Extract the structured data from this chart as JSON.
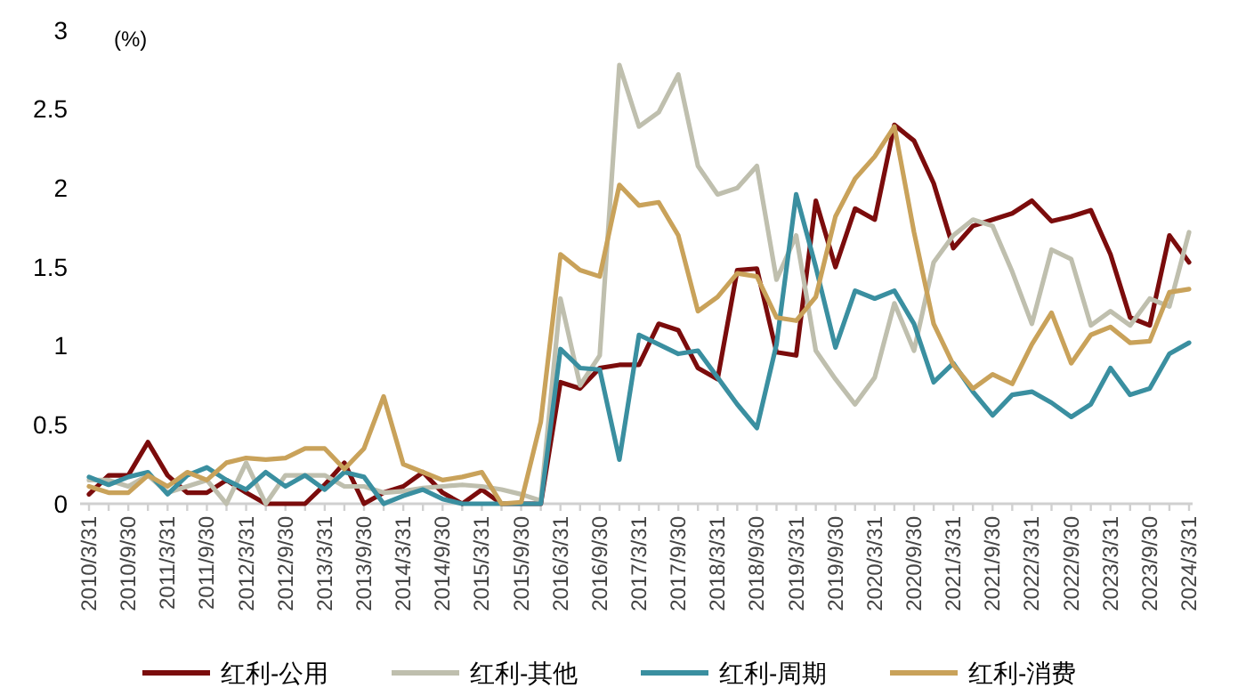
{
  "chart_data": {
    "type": "line",
    "ylabel": "(%)",
    "categories": [
      "2010/3/31",
      null,
      "2010/9/30",
      null,
      "2011/3/31",
      null,
      "2011/9/30",
      null,
      "2012/3/31",
      null,
      "2012/9/30",
      null,
      "2013/3/31",
      null,
      "2013/9/30",
      null,
      "2014/3/31",
      null,
      "2014/9/30",
      null,
      "2015/3/31",
      null,
      "2015/9/30",
      null,
      "2016/3/31",
      null,
      "2016/9/30",
      null,
      "2017/3/31",
      null,
      "2017/9/30",
      null,
      "2018/3/31",
      null,
      "2018/9/30",
      null,
      "2019/3/31",
      null,
      "2019/9/30",
      null,
      "2020/3/31",
      null,
      "2020/9/30",
      null,
      "2021/3/31",
      null,
      "2021/9/30",
      null,
      "2022/3/31",
      null,
      "2022/9/30",
      null,
      "2023/3/31",
      null,
      "2023/9/30",
      null,
      "2024/3/31"
    ],
    "series": [
      {
        "name": "红利-公用",
        "color": "#7b0c0c",
        "values": [
          0.06,
          0.18,
          0.18,
          0.39,
          0.18,
          0.07,
          0.07,
          0.15,
          0.07,
          0,
          0,
          0,
          0.12,
          0.26,
          0,
          0.07,
          0.11,
          0.2,
          0.07,
          0,
          0.09,
          0,
          0,
          0,
          0.77,
          0.73,
          0.86,
          0.88,
          0.88,
          1.14,
          1.1,
          0.86,
          0.79,
          1.48,
          1.49,
          0.96,
          0.94,
          1.92,
          1.5,
          1.87,
          1.8,
          2.4,
          2.3,
          2.03,
          1.62,
          1.76,
          1.8,
          1.84,
          1.92,
          1.79,
          1.82,
          1.86,
          1.58,
          1.18,
          1.13,
          1.7,
          1.53
        ]
      },
      {
        "name": "红利-其他",
        "color": "#bfbfae",
        "values": [
          0.15,
          0.15,
          0.11,
          0.18,
          0.07,
          0.11,
          0.15,
          0,
          0.26,
          0,
          0.18,
          0.18,
          0.18,
          0.11,
          0.11,
          0.07,
          0.08,
          0.1,
          0.11,
          0.12,
          0.11,
          0.09,
          0.06,
          0.02,
          1.3,
          0.75,
          0.94,
          2.78,
          2.39,
          2.48,
          2.72,
          2.14,
          1.96,
          2.0,
          2.14,
          1.42,
          1.7,
          0.97,
          0.79,
          0.63,
          0.8,
          1.27,
          0.97,
          1.53,
          1.7,
          1.8,
          1.76,
          1.47,
          1.14,
          1.61,
          1.55,
          1.13,
          1.22,
          1.13,
          1.3,
          1.25,
          1.72
        ]
      },
      {
        "name": "红利-周期",
        "color": "#3a8fa0",
        "values": [
          0.17,
          0.12,
          0.17,
          0.2,
          0.06,
          0.18,
          0.23,
          0.15,
          0.09,
          0.2,
          0.11,
          0.18,
          0.09,
          0.2,
          0.17,
          0,
          0.05,
          0.09,
          0.03,
          0,
          0,
          0,
          0,
          0,
          0.98,
          0.86,
          0.85,
          0.28,
          1.07,
          1.01,
          0.95,
          0.97,
          0.8,
          0.63,
          0.48,
          1.01,
          1.96,
          1.5,
          0.99,
          1.35,
          1.3,
          1.35,
          1.14,
          0.77,
          0.89,
          0.71,
          0.56,
          0.69,
          0.71,
          0.64,
          0.55,
          0.63,
          0.86,
          0.69,
          0.73,
          0.95,
          1.02
        ]
      },
      {
        "name": "红利-消费",
        "color": "#c9a25a",
        "values": [
          0.11,
          0.07,
          0.07,
          0.18,
          0.11,
          0.2,
          0.15,
          0.26,
          0.29,
          0.28,
          0.29,
          0.35,
          0.35,
          0.22,
          0.35,
          0.68,
          0.25,
          0.2,
          0.15,
          0.17,
          0.2,
          0,
          0.01,
          0.52,
          1.58,
          1.48,
          1.44,
          2.02,
          1.89,
          1.91,
          1.7,
          1.22,
          1.31,
          1.46,
          1.44,
          1.18,
          1.16,
          1.31,
          1.82,
          2.06,
          2.2,
          2.39,
          1.72,
          1.14,
          0.88,
          0.73,
          0.82,
          0.76,
          1.01,
          1.21,
          0.89,
          1.07,
          1.12,
          1.02,
          1.03,
          1.34,
          1.36
        ]
      }
    ],
    "ylim": [
      0,
      3
    ],
    "yticks": [
      0,
      0.5,
      1,
      1.5,
      2,
      2.5,
      3
    ],
    "legend": "bottom"
  }
}
